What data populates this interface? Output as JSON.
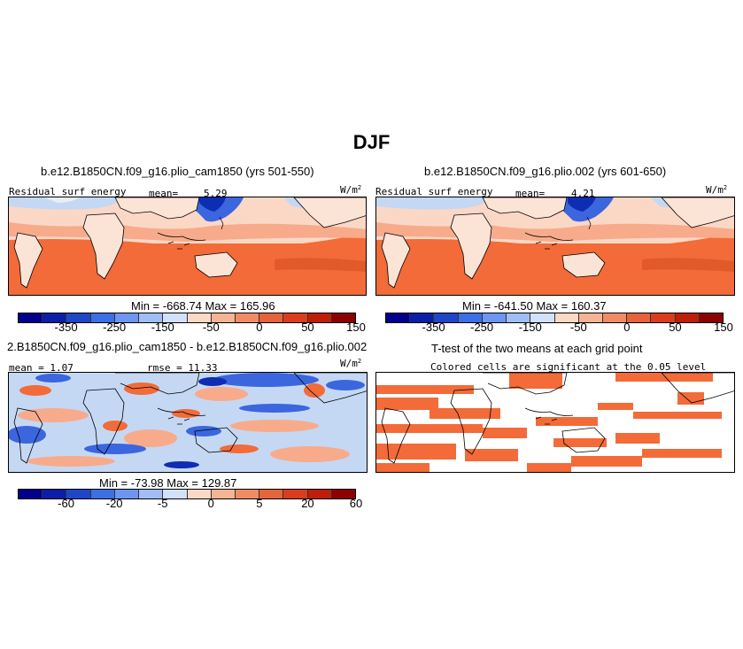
{
  "figure_title": "DJF",
  "panels": {
    "p1": {
      "run_title": "b.e12.B1850CN.f09_g16.plio_cam1850 (yrs 501-550)",
      "variable": "Residual surf energy",
      "mean_label": "mean=",
      "mean_value": "5.29",
      "units": "W/m",
      "units_exp": "2",
      "min_max": "Min = -668.74  Max = 165.96"
    },
    "p2": {
      "run_title": "b.e12.B1850CN.f09_g16.plio.002 (yrs 601-650)",
      "variable": "Residual surf energy",
      "mean_label": "mean=",
      "mean_value": "4.21",
      "units": "W/m",
      "units_exp": "2",
      "min_max": "Min = -641.50  Max = 160.37"
    },
    "p3": {
      "run_title": "2.B1850CN.f09_g16.plio_cam1850 - b.e12.B1850CN.f09_g16.plio.002",
      "mean_text": "mean =  1.07",
      "rmse_text": "rmse =  11.33",
      "units": "W/m",
      "units_exp": "2",
      "min_max": "Min = -73.98  Max = 129.87"
    },
    "p4": {
      "run_title": "T-test of the two means at each grid point",
      "subtitle": "Colored cells are significant at the 0.05 level"
    }
  },
  "colorbars": {
    "main": {
      "colors": [
        "#00008c",
        "#0a1ea8",
        "#1e46c8",
        "#3c6ee6",
        "#6e96f0",
        "#a0bef5",
        "#d2e1fa",
        "#fbd9c4",
        "#f6b496",
        "#f08c64",
        "#e6643c",
        "#dc3c1e",
        "#be1e0a",
        "#8c0000"
      ],
      "ticks": [
        "-350",
        "-250",
        "-150",
        "-50",
        "0",
        "50",
        "150"
      ]
    },
    "diff": {
      "colors": [
        "#00008c",
        "#0a1ea8",
        "#1e46c8",
        "#3c6ee6",
        "#6e96f0",
        "#a0bef5",
        "#d2e1fa",
        "#fbd9c4",
        "#f6b496",
        "#f08c64",
        "#e6643c",
        "#dc3c1e",
        "#be1e0a",
        "#8c0000"
      ],
      "ticks": [
        "-60",
        "-20",
        "-5",
        "0",
        "5",
        "20",
        "60"
      ]
    }
  },
  "colors": {
    "orange": "#f26b38",
    "salmon": "#f7ab8b",
    "pale": "#fbd7c6",
    "lightblue": "#c4d8f4",
    "blue": "#3b66de",
    "darkblue": "#0e2cb4",
    "ttest": "#f26b38"
  }
}
